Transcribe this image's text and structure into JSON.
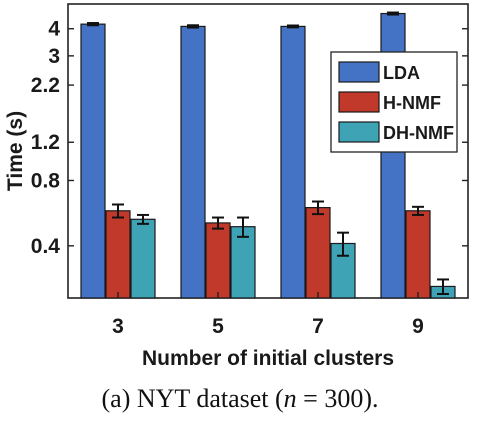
{
  "chart_data": {
    "type": "bar",
    "categories": [
      "3",
      "5",
      "7",
      "9"
    ],
    "series": [
      {
        "name": "LDA",
        "color": "#4472c4",
        "values": [
          4.2,
          4.1,
          4.1,
          4.7
        ],
        "errors": [
          0.05,
          0.05,
          0.04,
          0.05
        ]
      },
      {
        "name": "H-NMF",
        "color": "#c0392b",
        "values": [
          0.58,
          0.51,
          0.6,
          0.58
        ],
        "errors": [
          0.04,
          0.03,
          0.04,
          0.025
        ]
      },
      {
        "name": "DH-NMF",
        "color": "#3da3b5",
        "values": [
          0.53,
          0.49,
          0.41,
          0.26
        ],
        "errors": [
          0.025,
          0.05,
          0.05,
          0.02
        ]
      }
    ],
    "xlabel": "Number of initial clusters",
    "ylabel": "Time (s)",
    "yticks": [
      0.4,
      0.8,
      1.2,
      2.2,
      3,
      4
    ],
    "ytick_labels": [
      "0.4",
      "0.8",
      "1.2",
      "2.2",
      "3",
      "4"
    ],
    "ylim": [
      0.23,
      5.2
    ],
    "grid": false,
    "legend": "top-right"
  },
  "caption": {
    "prefix": "(a) NYT dataset (",
    "var": "n",
    "eq": " = 300)."
  }
}
